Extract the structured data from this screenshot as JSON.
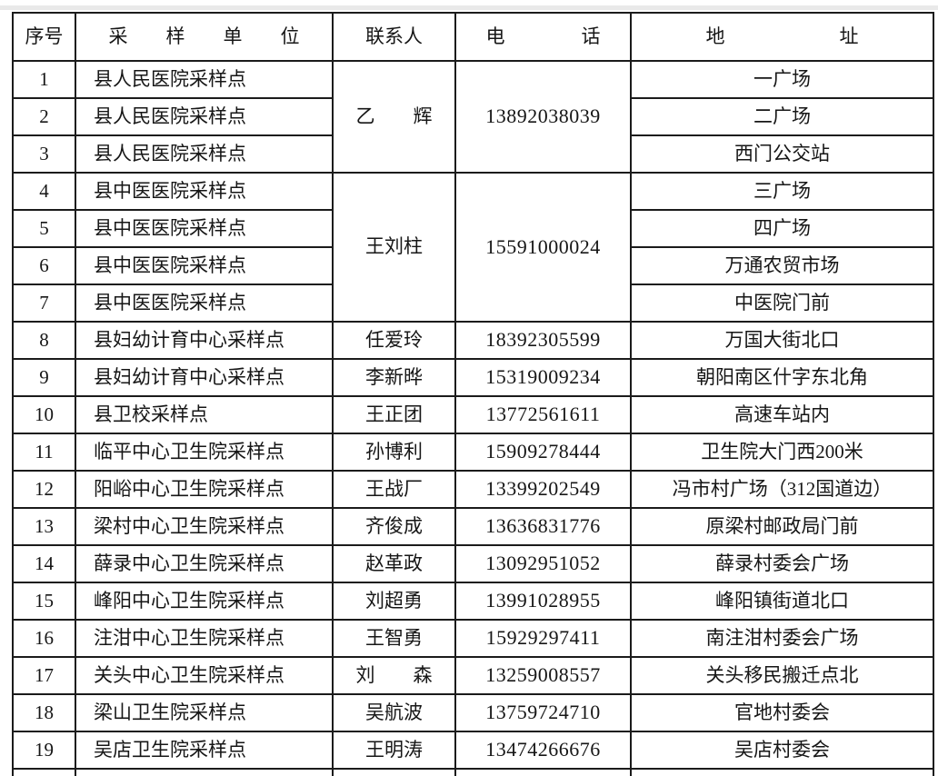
{
  "page": {
    "background": "#ffffff",
    "top_band_color": "#e9e9e9",
    "border_color": "#1b1b1b"
  },
  "table": {
    "headers": [
      {
        "key": "index",
        "label": "序号"
      },
      {
        "key": "unit",
        "label": "采　　样　　单　　位"
      },
      {
        "key": "contact",
        "label": "联系人"
      },
      {
        "key": "phone",
        "label": "电　　　　话"
      },
      {
        "key": "address",
        "label": "地　　　　　　址"
      }
    ],
    "rows": [
      {
        "index": "1",
        "unit": "县人民医院采样点",
        "contact": "乙　　辉",
        "contact_rowspan": 3,
        "phone": "13892038039",
        "phone_rowspan": 3,
        "address": "一广场"
      },
      {
        "index": "2",
        "unit": "县人民医院采样点",
        "address": "二广场"
      },
      {
        "index": "3",
        "unit": "县人民医院采样点",
        "address": "西门公交站"
      },
      {
        "index": "4",
        "unit": "县中医医院采样点",
        "contact": "王刘柱",
        "contact_rowspan": 4,
        "phone": "15591000024",
        "phone_rowspan": 4,
        "address": "三广场"
      },
      {
        "index": "5",
        "unit": "县中医医院采样点",
        "address": "四广场"
      },
      {
        "index": "6",
        "unit": "县中医医院采样点",
        "address": "万通农贸市场"
      },
      {
        "index": "7",
        "unit": "县中医医院采样点",
        "address": "中医院门前"
      },
      {
        "index": "8",
        "unit": "县妇幼计育中心采样点",
        "contact": "任爱玲",
        "phone": "18392305599",
        "address": "万国大街北口"
      },
      {
        "index": "9",
        "unit": "县妇幼计育中心采样点",
        "contact": "李新晔",
        "phone": "15319009234",
        "address": "朝阳南区什字东北角"
      },
      {
        "index": "10",
        "unit": "县卫校采样点",
        "contact": "王正团",
        "phone": "13772561611",
        "address": "高速车站内"
      },
      {
        "index": "11",
        "unit": "临平中心卫生院采样点",
        "contact": "孙博利",
        "phone": "15909278444",
        "address": "卫生院大门西200米"
      },
      {
        "index": "12",
        "unit": "阳峪中心卫生院采样点",
        "contact": "王战厂",
        "phone": "13399202549",
        "address": "冯市村广场（312国道边）"
      },
      {
        "index": "13",
        "unit": "梁村中心卫生院采样点",
        "contact": "齐俊成",
        "phone": "13636831776",
        "address": "原梁村邮政局门前"
      },
      {
        "index": "14",
        "unit": "薛录中心卫生院采样点",
        "contact": "赵革政",
        "phone": "13092951052",
        "address": "薛录村委会广场"
      },
      {
        "index": "15",
        "unit": "峰阳中心卫生院采样点",
        "contact": "刘超勇",
        "phone": "13991028955",
        "address": "峰阳镇街道北口"
      },
      {
        "index": "16",
        "unit": "注泔中心卫生院采样点",
        "contact": "王智勇",
        "phone": "15929297411",
        "address": "南注泔村委会广场"
      },
      {
        "index": "17",
        "unit": "关头中心卫生院采样点",
        "contact": "刘　　森",
        "phone": "13259008557",
        "address": "关头移民搬迁点北"
      },
      {
        "index": "18",
        "unit": "梁山卫生院采样点",
        "contact": "吴航波",
        "phone": "13759724710",
        "address": "官地村委会"
      },
      {
        "index": "19",
        "unit": "吴店卫生院采样点",
        "contact": "王明涛",
        "phone": "13474266676",
        "address": "吴店村委会"
      }
    ],
    "has_partial_next_row": true
  }
}
